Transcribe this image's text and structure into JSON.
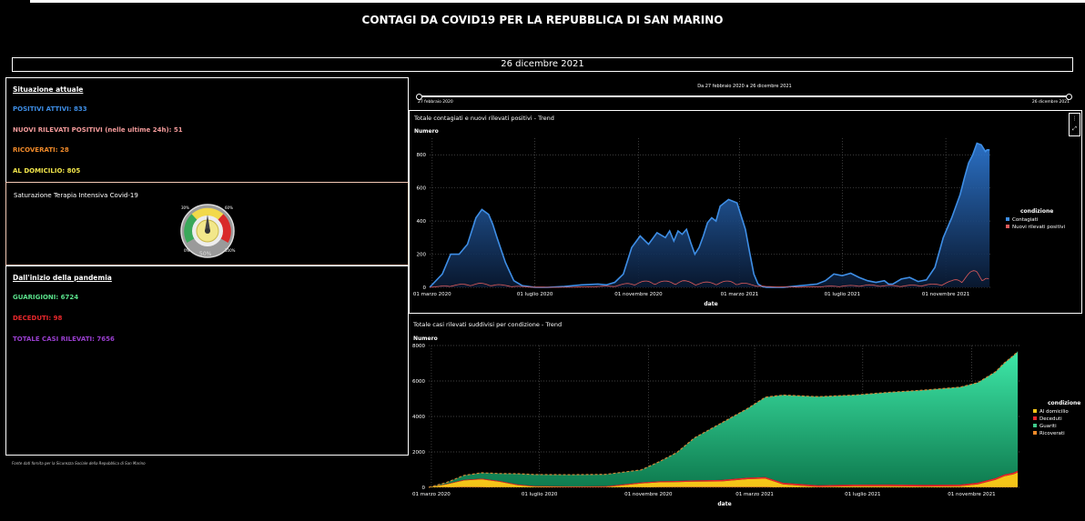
{
  "header": {
    "title": "CONTAGI DA COVID19 PER LA REPUBBLICA DI SAN MARINO",
    "date": "26 dicembre 2021"
  },
  "current": {
    "title": "Situazione attuale",
    "positivi": "POSITIVI ATTIVI: 833",
    "nuovi": "NUOVI RILEVATI POSITIVI (nelle ultime 24h): 51",
    "ricoverati": "RICOVERATI: 28",
    "domicilio": "AL DOMICILIO: 805"
  },
  "gauge": {
    "title": "Saturazione Terapia Intensiva Covid-19",
    "value": "50%",
    "value_fraction": 0.5,
    "tick_min": "0%",
    "tick_30": "30%",
    "tick_60": "60%",
    "tick_max": "100%"
  },
  "since": {
    "title": "Dall'inizio della pandemia",
    "guarigioni": "GUARIGIONI: 6724",
    "deceduti": "DECEDUTI: 98",
    "totale": "TOTALE CASI RILEVATI: 7656"
  },
  "footnote": "Fonte dati fornita per la Sicurezza Sociale della Repubblica di San Marino",
  "range_slider": {
    "label": "Da 27 febbraio 2020 a 26 dicembre 2021",
    "start": "27 febbraio 2020",
    "end": "26 dicembre 2021"
  },
  "colors": {
    "blue": "#3e8ee6",
    "red": "#e05b5b",
    "orange": "#f08a2a",
    "green": "#59e08a",
    "crimson": "#e8282c",
    "purple": "#9a3fd0",
    "yellow": "#f2e64b",
    "gauge_green": "#3aa85a",
    "gauge_yellow": "#f2d94a",
    "gauge_red": "#d92a2a"
  },
  "chart_data": [
    {
      "type": "area",
      "title": "Totale contagiati e nuovi rilevati positivi - Trend",
      "ylabel": "Numero",
      "xlabel": "date",
      "legend_title": "condizione",
      "ylim": [
        0,
        900
      ],
      "yticks": [
        0,
        200,
        400,
        600,
        800
      ],
      "x_tick_labels": [
        "01 marzo 2020",
        "01 luglio 2020",
        "01 novembre 2020",
        "01 marzo 2021",
        "01 luglio 2021",
        "01 novembre 2021"
      ],
      "x_tick_days": [
        3,
        125,
        248,
        368,
        490,
        613
      ],
      "x_range_days": [
        0,
        668
      ],
      "series": [
        {
          "name": "Contagiati",
          "days": [
            0,
            15,
            25,
            35,
            45,
            55,
            62,
            70,
            75,
            80,
            90,
            100,
            110,
            125,
            140,
            160,
            180,
            200,
            210,
            220,
            230,
            240,
            250,
            260,
            270,
            280,
            285,
            290,
            295,
            300,
            305,
            310,
            315,
            320,
            325,
            330,
            335,
            340,
            345,
            355,
            365,
            375,
            380,
            385,
            390,
            395,
            400,
            420,
            440,
            460,
            470,
            480,
            490,
            500,
            510,
            520,
            530,
            540,
            545,
            550,
            560,
            570,
            580,
            590,
            600,
            610,
            620,
            630,
            635,
            640,
            645,
            650,
            655,
            660,
            662,
            665
          ],
          "values": [
            0,
            80,
            200,
            200,
            260,
            420,
            470,
            440,
            380,
            300,
            150,
            40,
            10,
            0,
            0,
            5,
            15,
            20,
            15,
            30,
            80,
            240,
            310,
            260,
            330,
            300,
            340,
            280,
            340,
            320,
            350,
            270,
            200,
            240,
            310,
            390,
            420,
            400,
            490,
            530,
            510,
            350,
            210,
            80,
            20,
            5,
            0,
            0,
            10,
            20,
            40,
            80,
            70,
            85,
            60,
            40,
            30,
            40,
            20,
            20,
            50,
            60,
            35,
            45,
            120,
            300,
            420,
            560,
            660,
            750,
            800,
            870,
            860,
            820,
            830,
            830
          ]
        },
        {
          "name": "Nuovi rilevati positivi",
          "days": [
            0,
            20,
            40,
            60,
            80,
            100,
            120,
            150,
            180,
            220,
            240,
            260,
            280,
            300,
            320,
            340,
            360,
            380,
            400,
            440,
            480,
            520,
            560,
            600,
            620,
            640,
            650,
            660,
            665
          ],
          "values": [
            0,
            10,
            20,
            25,
            18,
            8,
            2,
            0,
            2,
            10,
            30,
            40,
            38,
            42,
            30,
            35,
            40,
            20,
            5,
            2,
            8,
            15,
            10,
            20,
            40,
            90,
            110,
            80,
            51
          ]
        }
      ]
    },
    {
      "type": "area",
      "title": "Totale casi rilevati suddivisi per condizione - Trend",
      "ylabel": "Numero",
      "xlabel": "date",
      "legend_title": "condizione",
      "ylim": [
        0,
        8000
      ],
      "yticks": [
        0,
        2000,
        4000,
        6000,
        8000
      ],
      "x_tick_labels": [
        "01 marzo 2020",
        "01 luglio 2020",
        "01 novembre 2020",
        "01 marzo 2021",
        "01 luglio 2021",
        "01 novembre 2021"
      ],
      "x_tick_days": [
        3,
        125,
        248,
        368,
        490,
        613
      ],
      "x_range_days": [
        0,
        668
      ],
      "days": [
        0,
        20,
        40,
        60,
        80,
        100,
        120,
        160,
        200,
        240,
        260,
        280,
        300,
        330,
        360,
        380,
        400,
        440,
        480,
        520,
        560,
        600,
        620,
        640,
        650,
        660,
        665
      ],
      "series": [
        {
          "name": "Al domicilio",
          "values": [
            0,
            150,
            350,
            420,
            300,
            120,
            30,
            10,
            15,
            200,
            250,
            260,
            280,
            300,
            420,
            450,
            150,
            20,
            60,
            60,
            40,
            50,
            150,
            400,
            600,
            700,
            805
          ]
        },
        {
          "name": "Deceduti",
          "values": [
            0,
            20,
            35,
            40,
            42,
            42,
            42,
            42,
            45,
            55,
            60,
            65,
            70,
            80,
            85,
            90,
            90,
            90,
            90,
            92,
            92,
            93,
            94,
            95,
            96,
            97,
            98
          ]
        },
        {
          "name": "Guariti",
          "values": [
            0,
            80,
            250,
            330,
            420,
            600,
            650,
            660,
            670,
            710,
            1100,
            1600,
            2400,
            3200,
            3900,
            4500,
            4950,
            5000,
            5050,
            5200,
            5350,
            5500,
            5650,
            6000,
            6300,
            6600,
            6724
          ]
        },
        {
          "name": "Ricoverati",
          "values": [
            0,
            20,
            40,
            30,
            15,
            5,
            1,
            0,
            2,
            20,
            30,
            35,
            40,
            35,
            40,
            40,
            15,
            2,
            5,
            5,
            5,
            10,
            15,
            25,
            25,
            28,
            28
          ]
        }
      ]
    }
  ]
}
